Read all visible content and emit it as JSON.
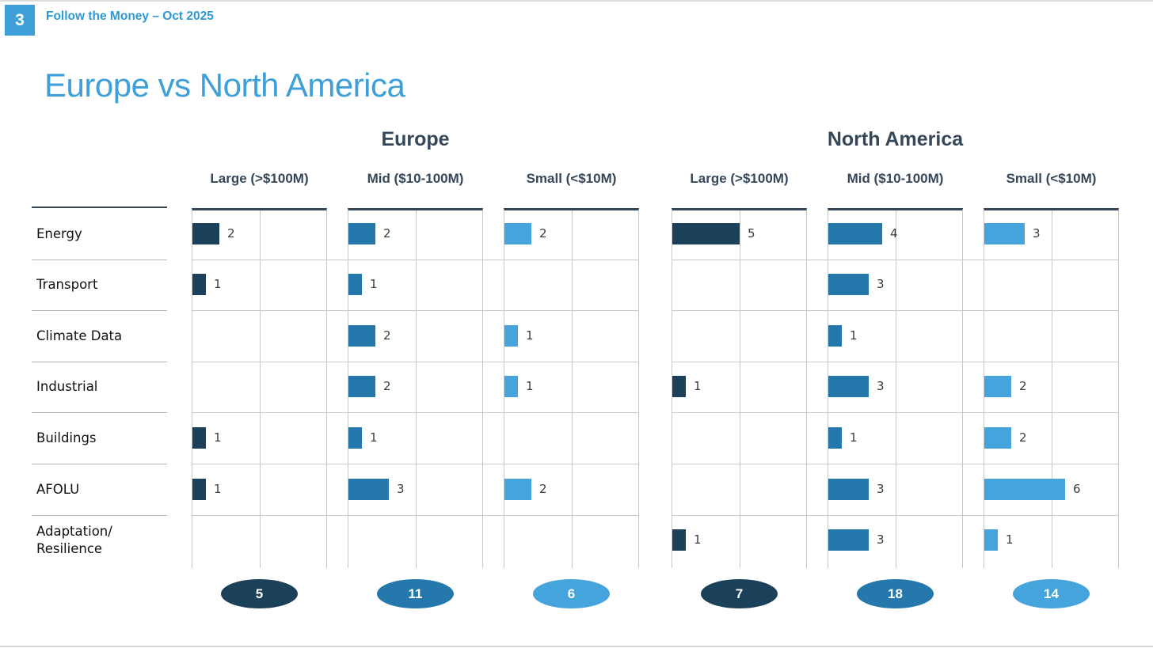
{
  "page": {
    "badge": "3",
    "header_note": "Follow the Money – Oct 2025",
    "title": "Europe vs North America"
  },
  "colors": {
    "accent_title": "#3fa0d9",
    "header_note_blue": "#2e99d2",
    "heading_dark": "#36475a",
    "bar_large": "#1b4059",
    "bar_mid": "#2478ab",
    "bar_small": "#45a4dc",
    "gridline": "#c9c9c9",
    "panel_top_border": "#33465a"
  },
  "chart_data": {
    "type": "bar",
    "orientation": "horizontal",
    "title": "Europe vs North America",
    "categories": [
      "Energy",
      "Transport",
      "Climate Data",
      "Industrial",
      "Buildings",
      "AFOLU",
      "Adaptation/\nResilience"
    ],
    "panel_axis": {
      "min": 0,
      "max": 10,
      "gridline_interval": 5,
      "grid": true
    },
    "legend_position": "none",
    "value_labels": "right of bar",
    "regions": [
      {
        "name": "Europe",
        "panels": [
          {
            "label": "Large (>$100M)",
            "color": "#1b4059",
            "values": [
              2,
              1,
              0,
              0,
              1,
              1,
              0
            ],
            "total": 5
          },
          {
            "label": "Mid ($10-100M)",
            "color": "#2478ab",
            "values": [
              2,
              1,
              2,
              2,
              1,
              3,
              0
            ],
            "total": 11
          },
          {
            "label": "Small (<$10M)",
            "color": "#45a4dc",
            "values": [
              2,
              0,
              1,
              1,
              0,
              2,
              0
            ],
            "total": 6
          }
        ]
      },
      {
        "name": "North America",
        "panels": [
          {
            "label": "Large (>$100M)",
            "color": "#1b4059",
            "values": [
              5,
              0,
              0,
              1,
              0,
              0,
              1
            ],
            "total": 7
          },
          {
            "label": "Mid ($10-100M)",
            "color": "#2478ab",
            "values": [
              4,
              3,
              1,
              3,
              1,
              3,
              3
            ],
            "total": 18
          },
          {
            "label": "Small (<$10M)",
            "color": "#45a4dc",
            "values": [
              3,
              0,
              0,
              2,
              2,
              6,
              1
            ],
            "total": 14
          }
        ]
      }
    ]
  }
}
